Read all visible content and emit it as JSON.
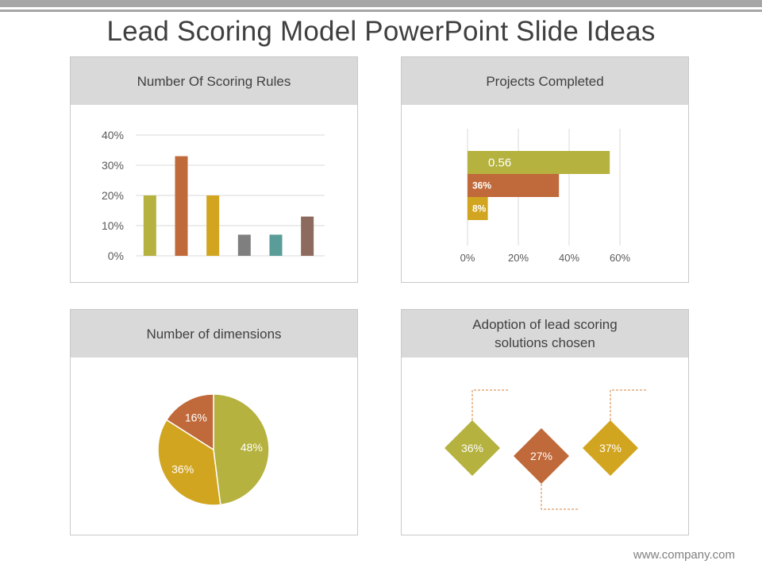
{
  "slide": {
    "title": "Lead Scoring Model PowerPoint Slide Ideas",
    "footer": "www.company.com"
  },
  "panels": {
    "scoring_rules": {
      "title": "Number Of Scoring Rules"
    },
    "projects": {
      "title": "Projects Completed"
    },
    "dimensions": {
      "title": "Number of dimensions"
    },
    "adoption": {
      "title": "Adoption of lead scoring solutions chosen"
    }
  },
  "chart_data": [
    {
      "type": "bar",
      "categories": [
        "",
        "",
        "",
        "",
        "",
        ""
      ],
      "values": [
        20,
        33,
        20,
        7,
        7,
        13
      ],
      "colors": [
        "#b5b23f",
        "#c0693a",
        "#d2a520",
        "#7f7f7f",
        "#5a9c98",
        "#8c6a5e"
      ],
      "yticks": [
        "0%",
        "10%",
        "20%",
        "30%",
        "40%"
      ],
      "ylim": [
        0,
        40
      ],
      "grid": true
    },
    {
      "type": "bar",
      "orientation": "horizontal",
      "values": [
        56,
        36,
        8
      ],
      "labels": [
        "0.56",
        "36%",
        "8%"
      ],
      "colors": [
        "#b5b23f",
        "#c0693a",
        "#d2a520"
      ],
      "xticks": [
        "0%",
        "20%",
        "40%",
        "60%"
      ],
      "xlim": [
        0,
        60
      ],
      "grid": true
    },
    {
      "type": "pie",
      "values": [
        48,
        36,
        16
      ],
      "labels": [
        "48%",
        "36%",
        "16%"
      ],
      "colors": [
        "#b5b23f",
        "#d2a520",
        "#c0693a"
      ]
    },
    {
      "type": "other",
      "values": [
        36,
        27,
        37
      ],
      "labels": [
        "36%",
        "27%",
        "37%"
      ],
      "colors": [
        "#b5b23f",
        "#c0693a",
        "#d2a520"
      ]
    }
  ]
}
